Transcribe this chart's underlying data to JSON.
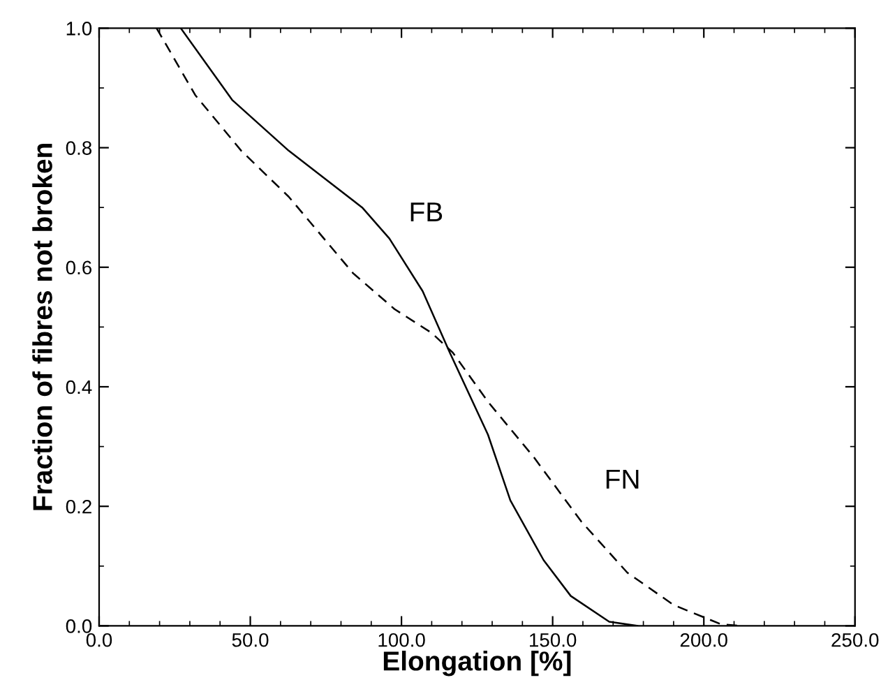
{
  "chart_data": {
    "type": "line",
    "xlabel": "Elongation [%]",
    "ylabel": "Fraction of fibres not broken",
    "series": [
      {
        "name": "FB",
        "color": "#000000",
        "line_style": "solid",
        "x": [
          27,
          44,
          62.7,
          87,
          96,
          107,
          116,
          128.6,
          136,
          147,
          156,
          168.7,
          178
        ],
        "values": [
          1.0,
          0.88,
          0.795,
          0.7,
          0.648,
          0.56,
          0.457,
          0.32,
          0.21,
          0.11,
          0.05,
          0.007,
          0.0
        ]
      },
      {
        "name": "FN",
        "color": "#000000",
        "line_style": "dashed",
        "x": [
          19,
          31.8,
          47,
          62.7,
          84,
          97.7,
          110,
          117,
          128.6,
          143.8,
          159.4,
          174.7,
          190,
          205.5,
          212
        ],
        "values": [
          1.0,
          0.888,
          0.795,
          0.718,
          0.59,
          0.53,
          0.49,
          0.457,
          0.375,
          0.282,
          0.175,
          0.089,
          0.035,
          0.003,
          0.0
        ]
      }
    ],
    "xlim": [
      0,
      250
    ],
    "ylim": [
      0,
      1
    ],
    "xticks": [
      {
        "value": 0,
        "label": "0.0"
      },
      {
        "value": 50,
        "label": "50.0"
      },
      {
        "value": 100,
        "label": "100.0"
      },
      {
        "value": 150,
        "label": "150.0"
      },
      {
        "value": 200,
        "label": "200.0"
      },
      {
        "value": 250,
        "label": "250.0"
      }
    ],
    "yticks": [
      {
        "value": 0,
        "label": "0.0"
      },
      {
        "value": 0.2,
        "label": "0.2"
      },
      {
        "value": 0.4,
        "label": "0.4"
      },
      {
        "value": 0.6,
        "label": "0.6"
      },
      {
        "value": 0.8,
        "label": "0.8"
      },
      {
        "value": 1,
        "label": "1.0"
      }
    ],
    "grid": false,
    "legend": false
  }
}
